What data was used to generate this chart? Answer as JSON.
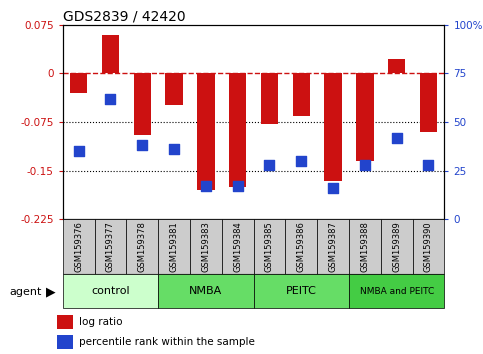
{
  "title": "GDS2839 / 42420",
  "samples": [
    "GSM159376",
    "GSM159377",
    "GSM159378",
    "GSM159381",
    "GSM159383",
    "GSM159384",
    "GSM159385",
    "GSM159386",
    "GSM159387",
    "GSM159388",
    "GSM159389",
    "GSM159390"
  ],
  "log_ratio": [
    -0.03,
    0.06,
    -0.095,
    -0.048,
    -0.18,
    -0.175,
    -0.078,
    -0.065,
    -0.165,
    -0.135,
    0.022,
    -0.09
  ],
  "percentile_rank": [
    35,
    62,
    38,
    36,
    17,
    17,
    28,
    30,
    16,
    28,
    42,
    28
  ],
  "groups": [
    {
      "label": "control",
      "start": 0,
      "end": 3,
      "color": "#ccffcc"
    },
    {
      "label": "NMBA",
      "start": 3,
      "end": 6,
      "color": "#66dd66"
    },
    {
      "label": "PEITC",
      "start": 6,
      "end": 9,
      "color": "#66dd66"
    },
    {
      "label": "NMBA and PEITC",
      "start": 9,
      "end": 12,
      "color": "#44cc44"
    }
  ],
  "ylim": [
    -0.225,
    0.075
  ],
  "yticks_left": [
    0.075,
    0,
    -0.075,
    -0.15,
    -0.225
  ],
  "yticks_right": [
    100,
    75,
    50,
    25,
    0
  ],
  "bar_color": "#cc1111",
  "dot_color": "#2244cc",
  "bar_width": 0.55,
  "dot_size": 45,
  "sample_box_color": "#cccccc",
  "agent_label": "agent",
  "legend_bar_label": "log ratio",
  "legend_dot_label": "percentile rank within the sample",
  "group_label_fontsize": 8,
  "sample_label_fontsize": 6
}
